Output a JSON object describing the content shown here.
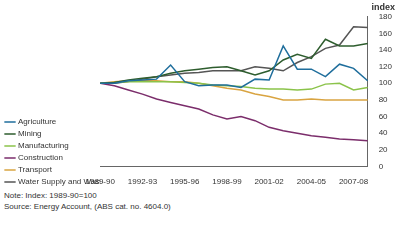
{
  "chart_data": {
    "type": "line",
    "y_label": "index",
    "notes": [
      "Note: Index: 1989-90=100",
      "Source: Energy Account, (ABS cat. no. 4604.0)"
    ],
    "categories": [
      "1989-90",
      null,
      null,
      "1992-93",
      null,
      null,
      "1995-96",
      null,
      null,
      "1998-99",
      null,
      null,
      "2001-02",
      null,
      null,
      "2004-05",
      null,
      null,
      "2007-08",
      null
    ],
    "series": [
      {
        "name": "Agriculture",
        "color": "#1f6e9c",
        "values": [
          100,
          100,
          103,
          104,
          105,
          122,
          102,
          97,
          98,
          98,
          95,
          105,
          104,
          145,
          117,
          117,
          108,
          123,
          118,
          103
        ]
      },
      {
        "name": "Mining",
        "color": "#2e5d2e",
        "values": [
          100,
          101,
          104,
          106,
          108,
          112,
          115,
          117,
          119,
          120,
          115,
          110,
          115,
          128,
          135,
          130,
          153,
          145,
          145,
          148
        ]
      },
      {
        "name": "Manufacturing",
        "color": "#8bc34a",
        "values": [
          100,
          101,
          102,
          102,
          102,
          102,
          101,
          100,
          98,
          97,
          96,
          94,
          93,
          93,
          92,
          93,
          99,
          100,
          92,
          95
        ]
      },
      {
        "name": "Construction",
        "color": "#7b2d6b",
        "values": [
          100,
          97,
          92,
          87,
          81,
          77,
          73,
          69,
          62,
          57,
          60,
          55,
          47,
          43,
          40,
          37,
          35,
          33,
          32,
          31
        ]
      },
      {
        "name": "Transport",
        "color": "#d9a441",
        "values": [
          100,
          102,
          103,
          103,
          103,
          102,
          102,
          100,
          97,
          94,
          92,
          87,
          84,
          80,
          80,
          81,
          80,
          80,
          80,
          80
        ]
      },
      {
        "name": "Water Supply and Waste",
        "color": "#555555",
        "values": [
          100,
          100,
          102,
          105,
          108,
          110,
          112,
          113,
          115,
          115,
          115,
          120,
          118,
          115,
          125,
          132,
          142,
          146,
          168,
          167
        ]
      }
    ],
    "ylim": [
      0,
      180
    ],
    "yticks": [
      0,
      20,
      40,
      60,
      80,
      100,
      120,
      140,
      160,
      180
    ],
    "grid": false,
    "legend": "left"
  }
}
